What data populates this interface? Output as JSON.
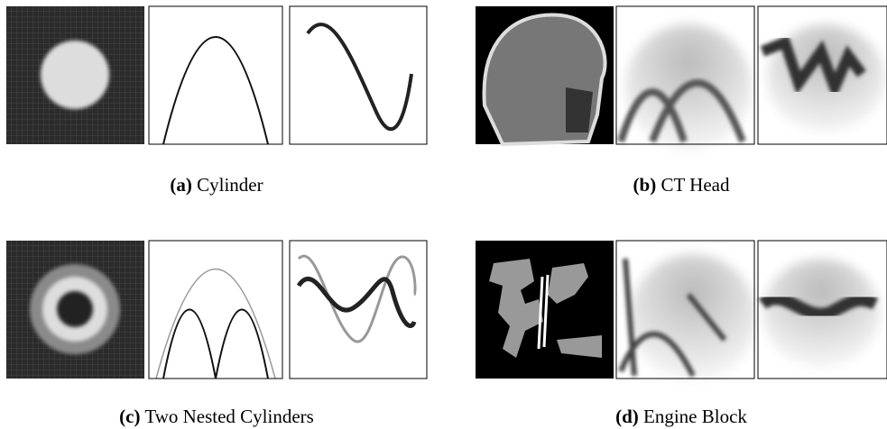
{
  "subfigures": [
    {
      "label": "(a)",
      "caption": "Cylinder"
    },
    {
      "label": "(b)",
      "caption": "CT Head"
    },
    {
      "label": "(c)",
      "caption": "Two Nested Cylinders"
    },
    {
      "label": "(d)",
      "caption": "Engine Block"
    }
  ]
}
